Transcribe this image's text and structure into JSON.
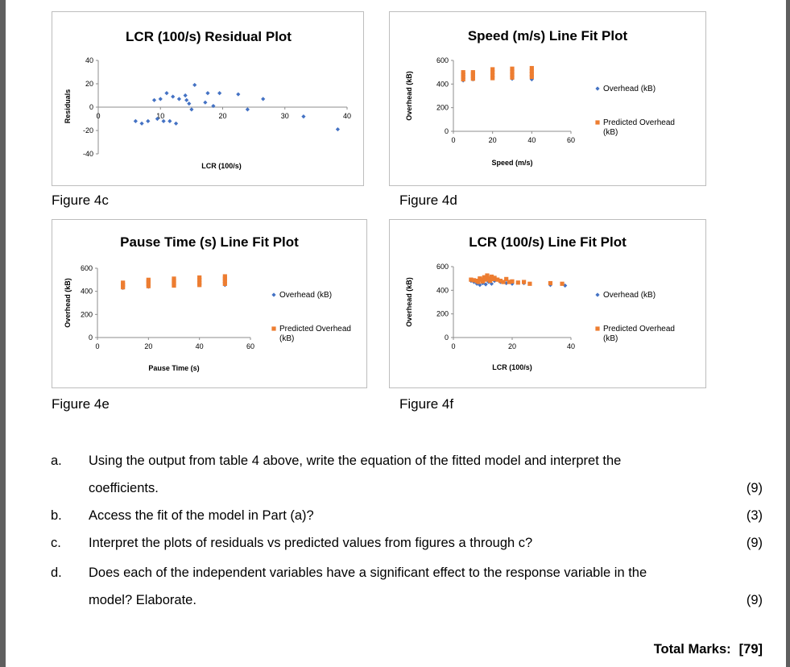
{
  "figures": [
    {
      "caption": "Figure 4c",
      "chart_data": {
        "type": "scatter",
        "title": "LCR (100/s) Residual Plot",
        "xlabel": "LCR (100/s)",
        "ylabel": "Residuals",
        "xlim": [
          0,
          40
        ],
        "ylim": [
          -40,
          40
        ],
        "xticks": [
          "0",
          "10",
          "20",
          "30",
          "40"
        ],
        "yticks": [
          "40",
          "20",
          "0",
          "-20",
          "-40"
        ],
        "x_tick_labels_at": "zero-line",
        "grid": false,
        "legend": "none",
        "series": [
          {
            "color": "#4472c4",
            "marker": "diamond",
            "points": [
              [
                6,
                -12
              ],
              [
                7,
                -14
              ],
              [
                8,
                -12
              ],
              [
                9,
                6
              ],
              [
                9.5,
                -10
              ],
              [
                10,
                7
              ],
              [
                10.5,
                -12
              ],
              [
                11,
                12
              ],
              [
                11.5,
                -12
              ],
              [
                12,
                9
              ],
              [
                12.5,
                -14
              ],
              [
                13,
                7
              ],
              [
                14,
                10
              ],
              [
                14.2,
                6
              ],
              [
                14.6,
                3
              ],
              [
                15,
                -2
              ],
              [
                15.5,
                19
              ],
              [
                17.2,
                4
              ],
              [
                17.6,
                12
              ],
              [
                18.5,
                1
              ],
              [
                19.5,
                12
              ],
              [
                22.5,
                11
              ],
              [
                24,
                -2
              ],
              [
                26.5,
                7
              ],
              [
                33,
                -8
              ],
              [
                38.5,
                -19
              ]
            ]
          }
        ]
      }
    },
    {
      "caption": "Figure 4d",
      "chart_data": {
        "type": "scatter",
        "title": "Speed (m/s)  Line Fit  Plot",
        "xlabel": "Speed (m/s)",
        "ylabel": "Overhead (kB)",
        "xlim": [
          0,
          60
        ],
        "ylim": [
          0,
          600
        ],
        "xticks": [
          "0",
          "20",
          "40",
          "60"
        ],
        "yticks": [
          "600",
          "400",
          "200",
          "0"
        ],
        "grid": false,
        "legend": "right",
        "series": [
          {
            "name": "Overhead (kB)",
            "color": "#4472c4",
            "marker": "diamond",
            "points": [
              [
                5,
                430
              ],
              [
                5,
                455
              ],
              [
                10,
                440
              ],
              [
                10,
                460
              ],
              [
                20,
                450
              ],
              [
                20,
                510
              ],
              [
                30,
                445
              ],
              [
                30,
                500
              ],
              [
                40,
                440
              ],
              [
                40,
                460
              ]
            ]
          },
          {
            "name": "Predicted Overhead (kB)",
            "color": "#ed7d31",
            "marker": "square",
            "points": [
              [
                5,
                440
              ],
              [
                5,
                460
              ],
              [
                5,
                480
              ],
              [
                5,
                500
              ],
              [
                10,
                445
              ],
              [
                10,
                465
              ],
              [
                10,
                485
              ],
              [
                10,
                500
              ],
              [
                20,
                450
              ],
              [
                20,
                475
              ],
              [
                20,
                500
              ],
              [
                20,
                525
              ],
              [
                30,
                455
              ],
              [
                30,
                480
              ],
              [
                30,
                505
              ],
              [
                30,
                530
              ],
              [
                40,
                460
              ],
              [
                40,
                485
              ],
              [
                40,
                510
              ],
              [
                40,
                535
              ]
            ]
          }
        ]
      }
    },
    {
      "caption": "Figure 4e",
      "chart_data": {
        "type": "scatter",
        "title": "Pause Time (s) Line Fit  Plot",
        "xlabel": "Pause Time (s)",
        "ylabel": "Overhead (kB)",
        "xlim": [
          0,
          60
        ],
        "ylim": [
          0,
          600
        ],
        "xticks": [
          "0",
          "20",
          "40",
          "60"
        ],
        "yticks": [
          "600",
          "400",
          "200",
          "0"
        ],
        "grid": false,
        "legend": "right",
        "series": [
          {
            "name": "Overhead (kB)",
            "color": "#4472c4",
            "marker": "diamond",
            "points": [
              [
                10,
                430
              ],
              [
                10,
                450
              ],
              [
                20,
                440
              ],
              [
                20,
                460
              ],
              [
                30,
                450
              ],
              [
                30,
                470
              ],
              [
                40,
                455
              ],
              [
                40,
                475
              ],
              [
                50,
                455
              ],
              [
                50,
                480
              ]
            ]
          },
          {
            "name": "Predicted Overhead (kB)",
            "color": "#ed7d31",
            "marker": "square",
            "points": [
              [
                10,
                435
              ],
              [
                10,
                455
              ],
              [
                10,
                475
              ],
              [
                20,
                445
              ],
              [
                20,
                465
              ],
              [
                20,
                485
              ],
              [
                20,
                500
              ],
              [
                30,
                450
              ],
              [
                30,
                470
              ],
              [
                30,
                490
              ],
              [
                30,
                510
              ],
              [
                40,
                455
              ],
              [
                40,
                475
              ],
              [
                40,
                500
              ],
              [
                40,
                520
              ],
              [
                50,
                465
              ],
              [
                50,
                490
              ],
              [
                50,
                510
              ],
              [
                50,
                530
              ]
            ]
          }
        ]
      }
    },
    {
      "caption": "Figure 4f",
      "chart_data": {
        "type": "scatter",
        "title": "LCR (100/s) Line Fit  Plot",
        "xlabel": "LCR (100/s)",
        "ylabel": "Overhead (kB)",
        "xlim": [
          0,
          40
        ],
        "ylim": [
          0,
          600
        ],
        "xticks": [
          "0",
          "20",
          "40"
        ],
        "yticks": [
          "600",
          "400",
          "200",
          "0"
        ],
        "grid": false,
        "legend": "right",
        "series": [
          {
            "name": "Overhead (kB)",
            "color": "#4472c4",
            "marker": "diamond",
            "points": [
              [
                6,
                480
              ],
              [
                7,
                470
              ],
              [
                8,
                455
              ],
              [
                9,
                445
              ],
              [
                10,
                460
              ],
              [
                11,
                450
              ],
              [
                12,
                470
              ],
              [
                13,
                455
              ],
              [
                14,
                480
              ],
              [
                15,
                490
              ],
              [
                16,
                470
              ],
              [
                18,
                460
              ],
              [
                20,
                455
              ],
              [
                24,
                460
              ],
              [
                33,
                445
              ],
              [
                38,
                440
              ]
            ]
          },
          {
            "name": "Predicted Overhead (kB)",
            "color": "#ed7d31",
            "marker": "square",
            "points": [
              [
                6,
                490
              ],
              [
                7,
                485
              ],
              [
                8,
                480
              ],
              [
                8.5,
                470
              ],
              [
                9,
                500
              ],
              [
                9.5,
                490
              ],
              [
                10,
                475
              ],
              [
                10.5,
                510
              ],
              [
                11,
                490
              ],
              [
                11.5,
                525
              ],
              [
                12,
                500
              ],
              [
                12.5,
                480
              ],
              [
                13,
                515
              ],
              [
                13.5,
                495
              ],
              [
                14,
                505
              ],
              [
                15,
                490
              ],
              [
                16,
                480
              ],
              [
                17,
                470
              ],
              [
                18,
                495
              ],
              [
                19,
                470
              ],
              [
                20,
                475
              ],
              [
                22,
                465
              ],
              [
                24,
                470
              ],
              [
                26,
                455
              ],
              [
                33,
                460
              ],
              [
                37,
                455
              ]
            ]
          }
        ]
      }
    }
  ],
  "questions": [
    {
      "letter": "a.",
      "lines": [
        "Using the output from table 4 above, write the equation of the fitted model and interpret the",
        "coefficients."
      ],
      "marks": "(9)"
    },
    {
      "letter": "b.",
      "lines": [
        "Access the fit of the model in Part (a)?"
      ],
      "marks": "(3)"
    },
    {
      "letter": "c.",
      "lines": [
        "Interpret the plots of residuals vs predicted values from figures a through c?"
      ],
      "marks": "(9)"
    },
    {
      "letter": "d.",
      "lines": [
        "Does each of the independent variables have a significant effect to the response variable in the",
        "model? Elaborate."
      ],
      "marks": "(9)"
    }
  ],
  "total": {
    "label": "Total Marks:",
    "value": "[79]"
  }
}
